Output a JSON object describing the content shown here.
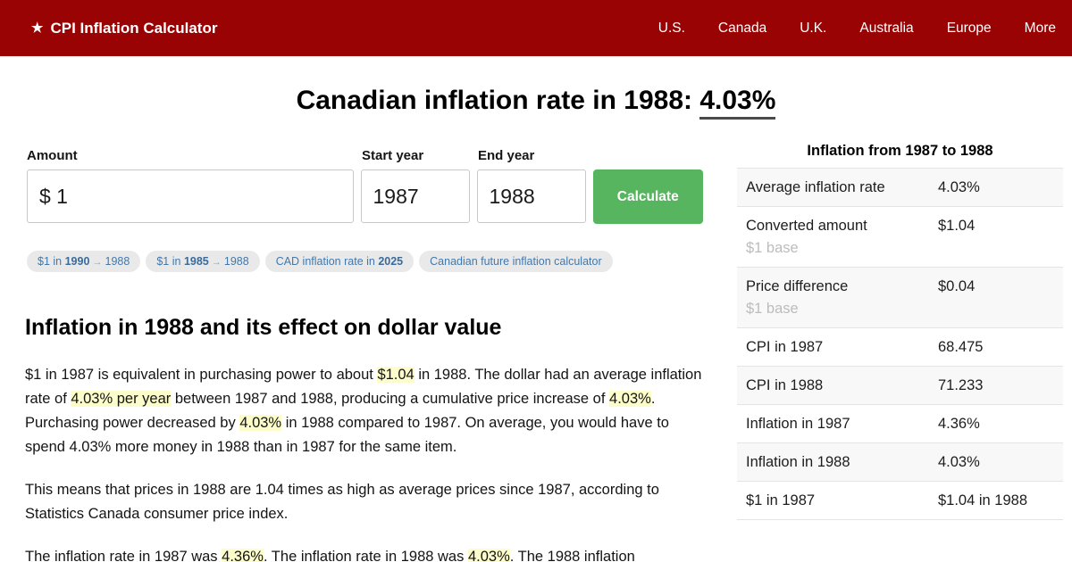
{
  "colors": {
    "header_bg": "#990303",
    "button_green": "#57b560",
    "chip_text_blue": "#4278ac",
    "highlight_yellow": "#fdfdcb",
    "row_stripe": "#f8f8f8"
  },
  "header": {
    "logo_star": "★",
    "brand": "CPI Inflation Calculator",
    "nav": [
      "U.S.",
      "Canada",
      "U.K.",
      "Australia",
      "Europe",
      "More"
    ]
  },
  "page_title": {
    "prefix": "Canadian inflation rate in 1988: ",
    "underlined": "4.03%"
  },
  "calculator": {
    "amount_label": "Amount",
    "amount_value": "$ 1",
    "start_year_label": "Start year",
    "start_year_value": "1987",
    "end_year_label": "End year",
    "end_year_value": "1988",
    "calculate_label": "Calculate"
  },
  "chips": [
    {
      "segments": [
        {
          "t": "$1 in "
        },
        {
          "t": "1990",
          "b": true
        },
        {
          "t": " → ",
          "arrow": true
        },
        {
          "t": "1988"
        }
      ]
    },
    {
      "segments": [
        {
          "t": "$1 in "
        },
        {
          "t": "1985",
          "b": true
        },
        {
          "t": " → ",
          "arrow": true
        },
        {
          "t": "1988"
        }
      ]
    },
    {
      "segments": [
        {
          "t": "CAD inflation rate in "
        },
        {
          "t": "2025",
          "b": true
        }
      ]
    },
    {
      "segments": [
        {
          "t": "Canadian future inflation calculator"
        }
      ]
    }
  ],
  "article": {
    "heading": "Inflation in 1988 and its effect on dollar value",
    "paragraphs": [
      {
        "segments": [
          {
            "t": "$1 in 1987 is equivalent in purchasing power to about "
          },
          {
            "t": "$1.04",
            "h": true
          },
          {
            "t": " in 1988. The dollar had an average inflation rate of "
          },
          {
            "t": "4.03% per year",
            "h": true
          },
          {
            "t": " between 1987 and 1988, producing a cumulative price increase of "
          },
          {
            "t": "4.03%",
            "h": true
          },
          {
            "t": ". Purchasing power decreased by "
          },
          {
            "t": "4.03%",
            "h": true
          },
          {
            "t": " in 1988 compared to 1987. On average, you would have to spend 4.03% more money in 1988 than in 1987 for the same item."
          }
        ]
      },
      {
        "segments": [
          {
            "t": "This means that prices in 1988 are 1.04 times as high as average prices since 1987, according to Statistics Canada consumer price index."
          }
        ]
      },
      {
        "segments": [
          {
            "t": "The inflation rate in 1987 was "
          },
          {
            "t": "4.36%",
            "h": true
          },
          {
            "t": ". The inflation rate in 1988 was "
          },
          {
            "t": "4.03%",
            "h": true
          },
          {
            "t": ". The 1988 inflation"
          }
        ]
      }
    ]
  },
  "panel": {
    "title": "Inflation from 1987 to 1988",
    "rows": [
      {
        "label": "Average inflation rate",
        "value": "4.03%",
        "shaded": true
      },
      {
        "label": "Converted amount",
        "sub": "$1 base",
        "value": "$1.04",
        "shaded": false
      },
      {
        "label": "Price difference",
        "sub": "$1 base",
        "value": "$0.04",
        "shaded": true
      },
      {
        "label": "CPI in 1987",
        "value": "68.475",
        "shaded": false
      },
      {
        "label": "CPI in 1988",
        "value": "71.233",
        "shaded": true
      },
      {
        "label": "Inflation in 1987",
        "value": "4.36%",
        "shaded": false
      },
      {
        "label": "Inflation in 1988",
        "value": "4.03%",
        "shaded": true
      },
      {
        "label": "$1 in 1987",
        "value": "$1.04 in 1988",
        "shaded": false
      }
    ]
  }
}
